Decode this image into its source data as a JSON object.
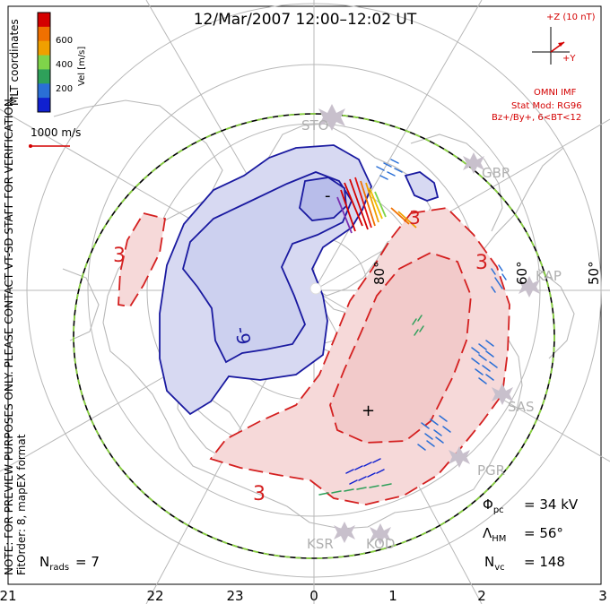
{
  "title": "12/Mar/2007 12:00–12:02 UT",
  "colorbar": {
    "label": "Vel [m/s]",
    "ticks": [
      "600",
      "400",
      "200"
    ],
    "colors": [
      "#d40000",
      "#f07000",
      "#f0a000",
      "#7fd44a",
      "#2ea05a",
      "#2a6fd6",
      "#1020d0"
    ]
  },
  "coords_label": "MLT coordinates",
  "vector_scale": "1000 m/s",
  "side_note": "NOTE: FOR PREVIEW PURPOSES ONLY. PLEASE CONTACT VT-SD STAFF FOR VERIFICATION.",
  "fit_order": "FitOrder: 8, mapEX format",
  "imf": {
    "bz_label": "+Z (10 nT)",
    "by_label": "+Y",
    "source": "OMNI IMF",
    "stat_mod": "Stat Mod: RG96",
    "condition": "Bz+/By+, 6<BT<12"
  },
  "stations": [
    "STO",
    "GBR",
    "KAP",
    "SAS",
    "PGR",
    "KSR",
    "KOD"
  ],
  "latitude_labels": [
    "80°",
    "60°",
    "50°"
  ],
  "contour_labels": [
    "-9",
    "-",
    "3",
    "3",
    "3",
    "3",
    "+"
  ],
  "stats": {
    "phi_pc": "= 34 kV",
    "lambda_hm": "= 56°",
    "n_vc": "= 148",
    "n_rads": "= 7"
  },
  "mlt_axis": [
    "21",
    "22",
    "23",
    "0",
    "1",
    "2",
    "3"
  ],
  "colors": {
    "negative_contour": "#1a1aa0",
    "negative_fill": "#d7d9f2",
    "positive_contour": "#d42020",
    "positive_fill": "#f6d9d9",
    "boundary_green": "#88d040",
    "map_lines": "#b8b8b8",
    "imf_red": "#d40000"
  }
}
